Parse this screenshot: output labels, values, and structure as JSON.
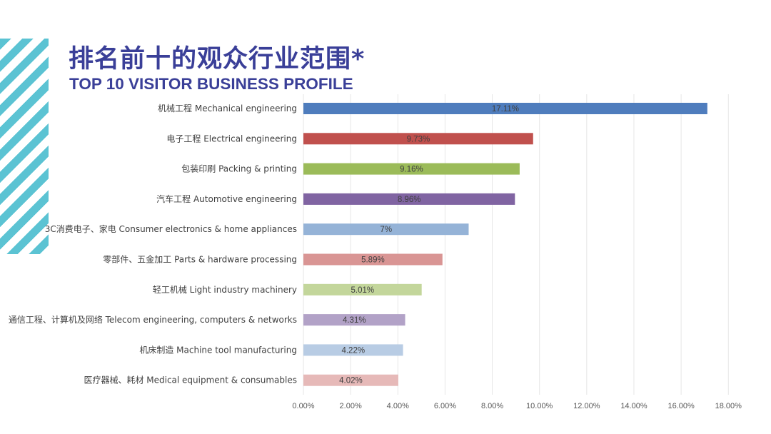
{
  "title_cn": "排名前十的观众行业范围*",
  "title_en": "TOP 10 VISITOR BUSINESS PROFILE",
  "chart_data": {
    "type": "bar",
    "orientation": "horizontal",
    "categories": [
      "机械工程 Mechanical engineering",
      "电子工程 Electrical engineering",
      "包装印刷 Packing & printing",
      "汽车工程 Automotive engineering",
      "3C消费电子、家电 Consumer electronics & home appliances",
      "零部件、五金加工 Parts & hardware processing",
      "轻工机械 Light industry machinery",
      "通信工程、计算机及网络 Telecom engineering, computers & networks",
      "机床制造 Machine tool manufacturing",
      "医疗器械、耗材 Medical equipment & consumables"
    ],
    "values": [
      17.11,
      9.73,
      9.16,
      8.96,
      7,
      5.89,
      5.01,
      4.31,
      4.22,
      4.02
    ],
    "data_labels": [
      "17.11%",
      "9.73%",
      "9.16%",
      "8.96%",
      "7%",
      "5.89%",
      "5.01%",
      "4.31%",
      "4.22%",
      "4.02%"
    ],
    "colors": [
      "#4f7dbd",
      "#c0504d",
      "#9bbb59",
      "#8064a2",
      "#95b3d7",
      "#d99594",
      "#c3d69b",
      "#b2a2c7",
      "#b8cce4",
      "#e6b9b8"
    ],
    "xlim": [
      0,
      18
    ],
    "x_ticks": [
      "0.00%",
      "2.00%",
      "4.00%",
      "6.00%",
      "8.00%",
      "10.00%",
      "12.00%",
      "14.00%",
      "16.00%",
      "18.00%"
    ],
    "grid": true
  }
}
